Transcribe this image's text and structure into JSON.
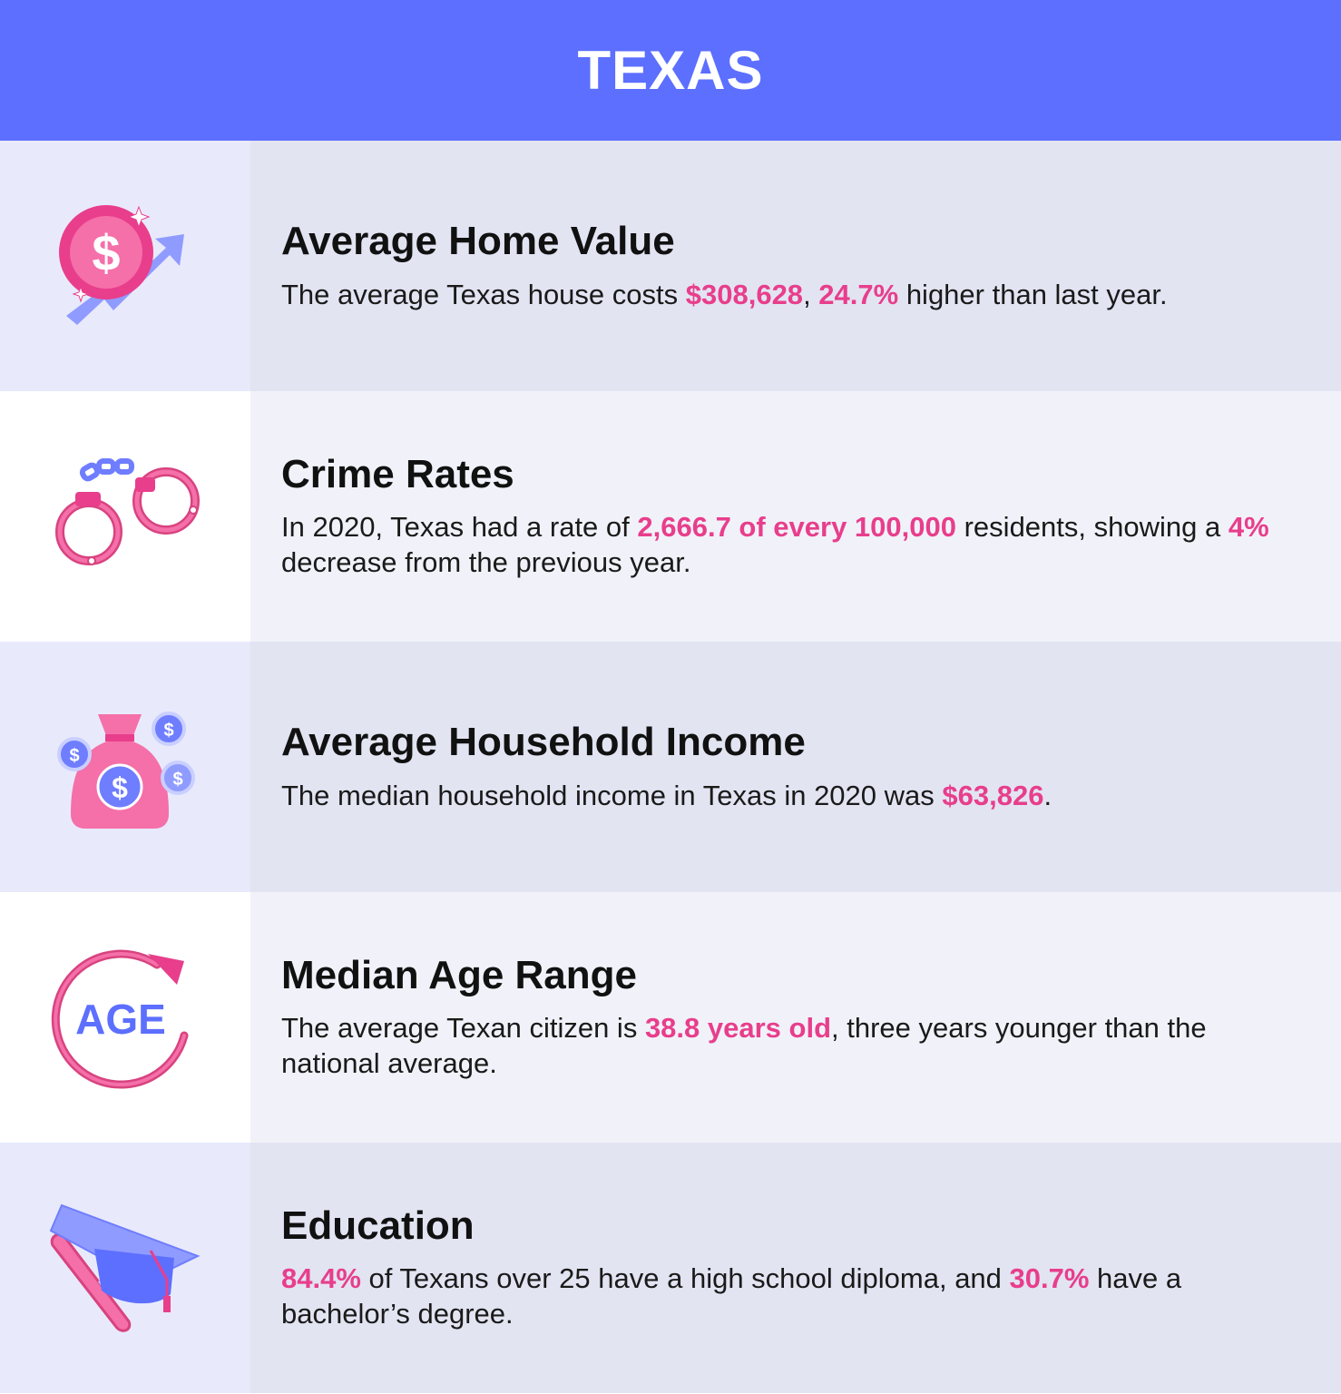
{
  "title": "TEXAS",
  "colors": {
    "header": "#5c6fff",
    "accent": "#e83e8c",
    "icon_blue": "#6f7dff"
  },
  "rows": [
    {
      "icon": "dollar-coin-up-arrow-icon",
      "heading": "Average Home Value",
      "parts": [
        "The average Texas house costs ",
        "$308,628",
        ", ",
        "24.7%",
        " higher than last year."
      ]
    },
    {
      "icon": "handcuffs-icon",
      "heading": "Crime Rates",
      "parts": [
        "In 2020, Texas had a rate of ",
        "2,666.7 of every 100,000",
        " residents, showing a ",
        "4%",
        " decrease from the previous year."
      ]
    },
    {
      "icon": "money-bag-icon",
      "heading": "Average Household Income",
      "parts": [
        "The median household income in Texas in 2020 was ",
        "$63,826",
        "."
      ]
    },
    {
      "icon": "age-cycle-icon",
      "icon_text": "AGE",
      "heading": "Median Age Range",
      "parts": [
        "The average Texan citizen is ",
        "38.8 years old",
        ", three years younger than the national average."
      ]
    },
    {
      "icon": "graduation-cap-diploma-icon",
      "heading": "Education",
      "parts": [
        "84.4%",
        " of Texans over 25 have a high school diploma, and ",
        "30.7%",
        " have a bachelor’s degree."
      ]
    }
  ]
}
